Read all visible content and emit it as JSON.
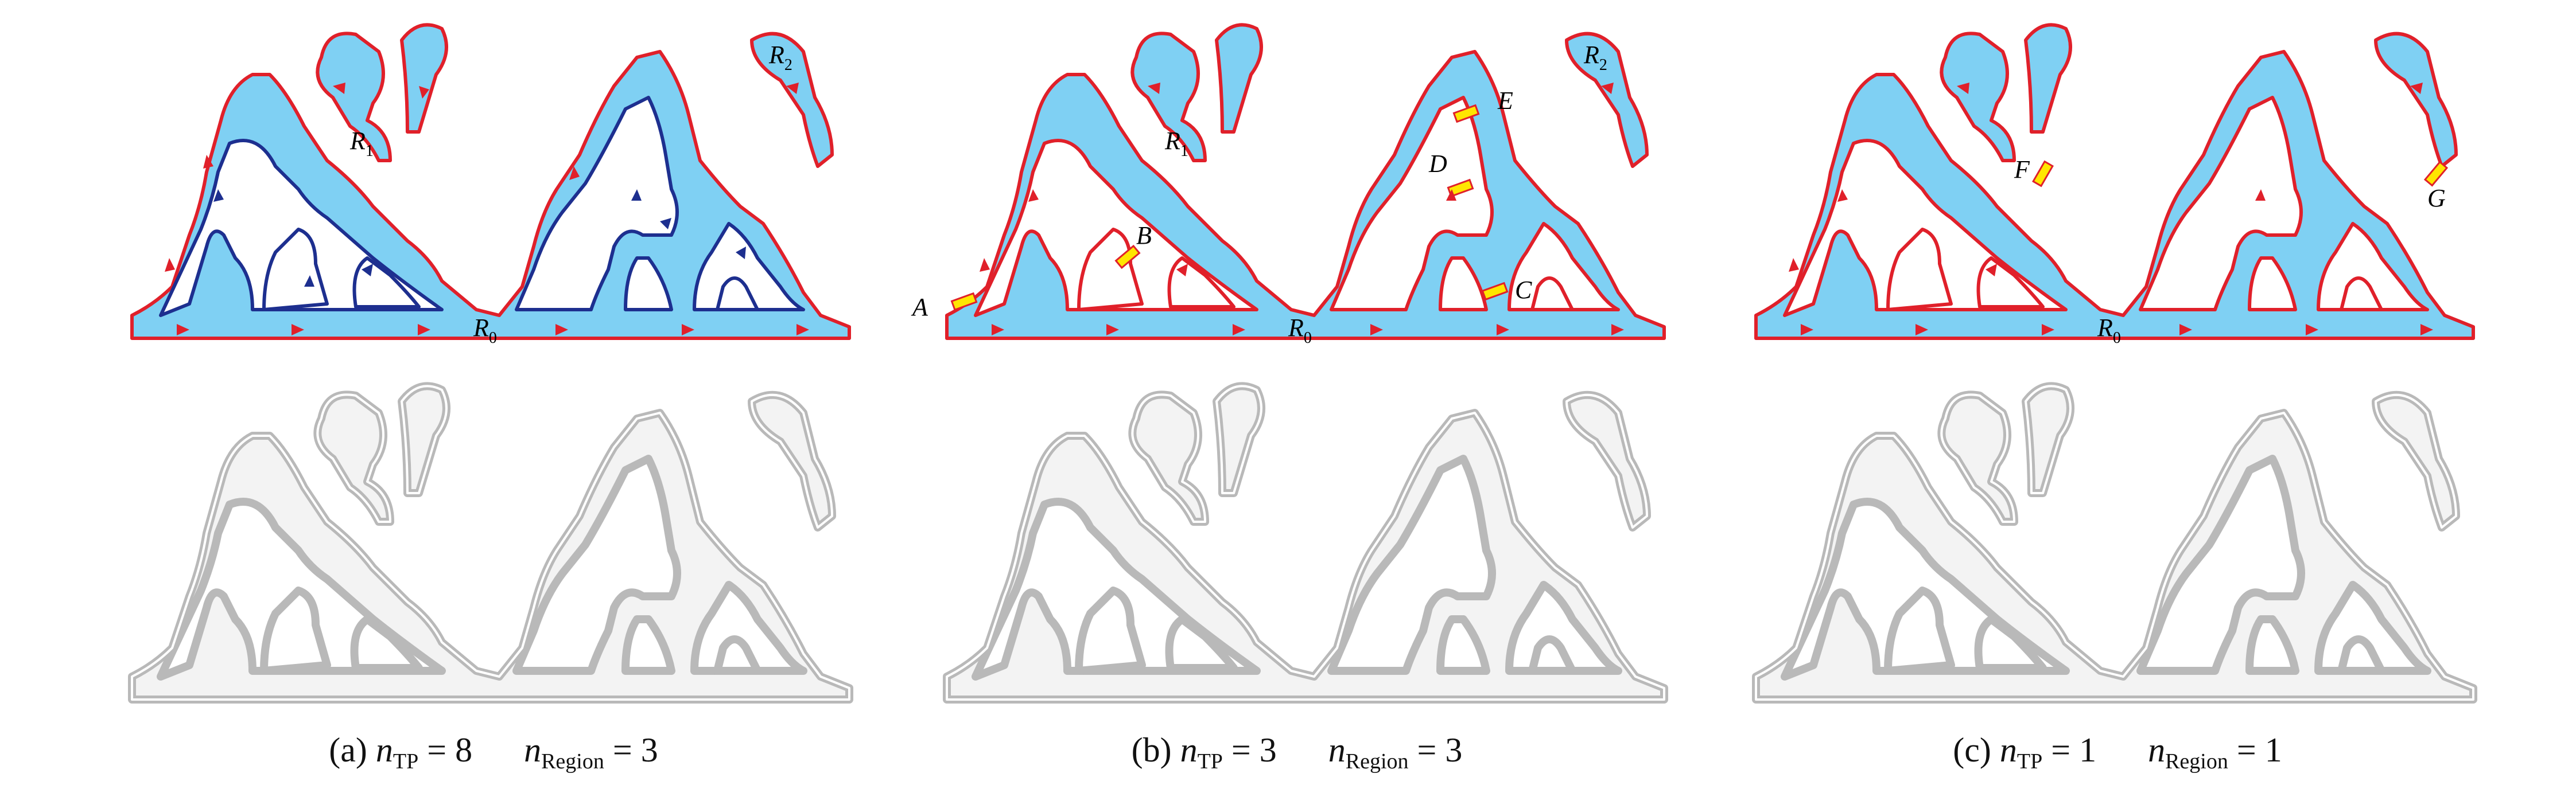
{
  "panels": [
    {
      "id": "a",
      "caption_label": "(a)",
      "n_tp": "8",
      "n_region": "3",
      "region_labels": [
        {
          "main": "R",
          "sub": "0"
        },
        {
          "main": "R",
          "sub": "1"
        },
        {
          "main": "R",
          "sub": "2"
        }
      ],
      "point_labels": []
    },
    {
      "id": "b",
      "caption_label": "(b)",
      "n_tp": "3",
      "n_region": "3",
      "region_labels": [
        {
          "main": "R",
          "sub": "0"
        },
        {
          "main": "R",
          "sub": "1"
        },
        {
          "main": "R",
          "sub": "2"
        }
      ],
      "point_labels": [
        "A",
        "B",
        "C",
        "D",
        "E"
      ]
    },
    {
      "id": "c",
      "caption_label": "(c)",
      "n_tp": "1",
      "n_region": "1",
      "region_labels": [
        {
          "main": "R",
          "sub": "0"
        }
      ],
      "point_labels": [
        "F",
        "G"
      ]
    }
  ],
  "caption_symbols": {
    "n": "n",
    "tp_sub": "TP",
    "region_sub": "Region",
    "equals": "="
  },
  "colors": {
    "fill": "#7fd0f3",
    "outer_path": "#e0202a",
    "inner_path": "#1d2f8f",
    "bridge": "#ffe600",
    "render_stroke": "#b9b9b9",
    "render_fill": "#f3f3f3"
  }
}
